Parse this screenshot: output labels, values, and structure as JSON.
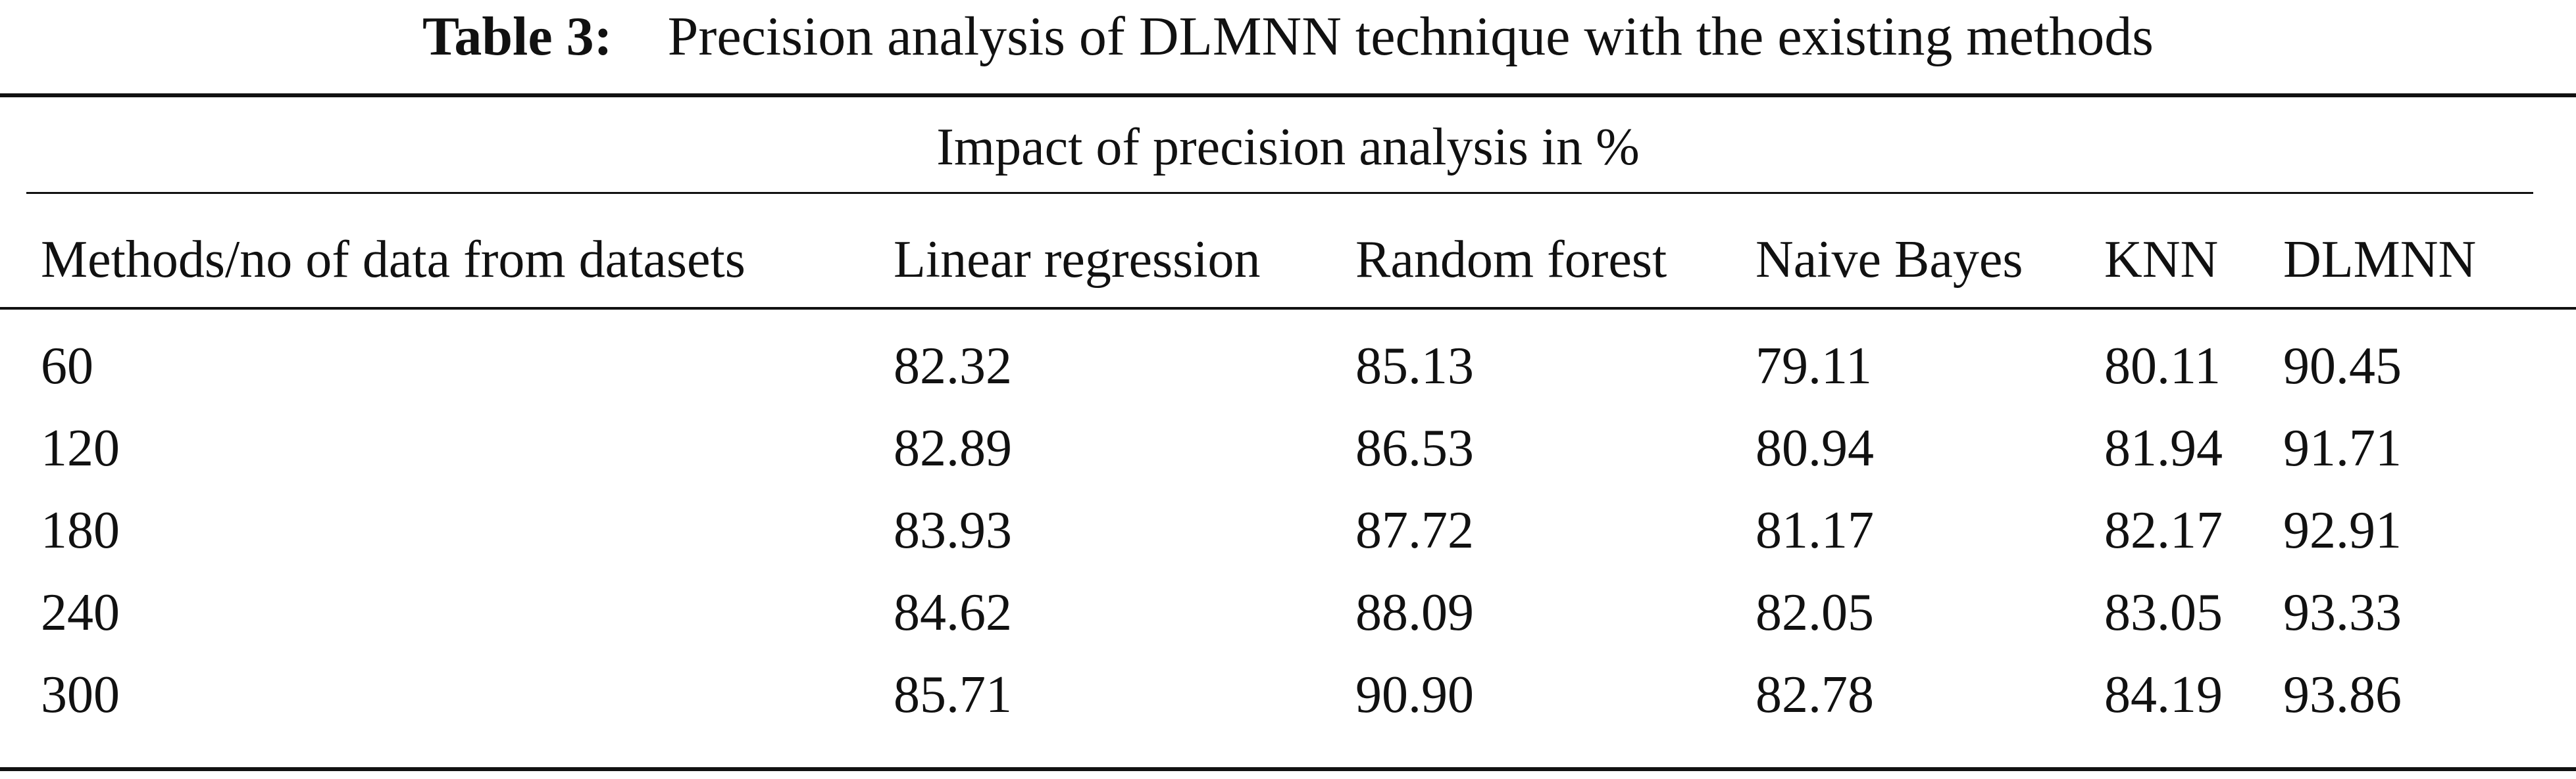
{
  "caption": {
    "label": "Table 3:",
    "text": "Precision analysis of DLMNN technique with the existing methods"
  },
  "table": {
    "group_header": "Impact of precision analysis in %",
    "columns": [
      "Methods/no of data from datasets",
      "Linear regression",
      "Random forest",
      "Naive Bayes",
      "KNN",
      "DLMNN"
    ],
    "rows": [
      [
        "60",
        "82.32",
        "85.13",
        "79.11",
        "80.11",
        "90.45"
      ],
      [
        "120",
        "82.89",
        "86.53",
        "80.94",
        "81.94",
        "91.71"
      ],
      [
        "180",
        "83.93",
        "87.72",
        "81.17",
        "82.17",
        "92.91"
      ],
      [
        "240",
        "84.62",
        "88.09",
        "82.05",
        "83.05",
        "93.33"
      ],
      [
        "300",
        "85.71",
        "90.90",
        "82.78",
        "84.19",
        "93.86"
      ]
    ]
  }
}
